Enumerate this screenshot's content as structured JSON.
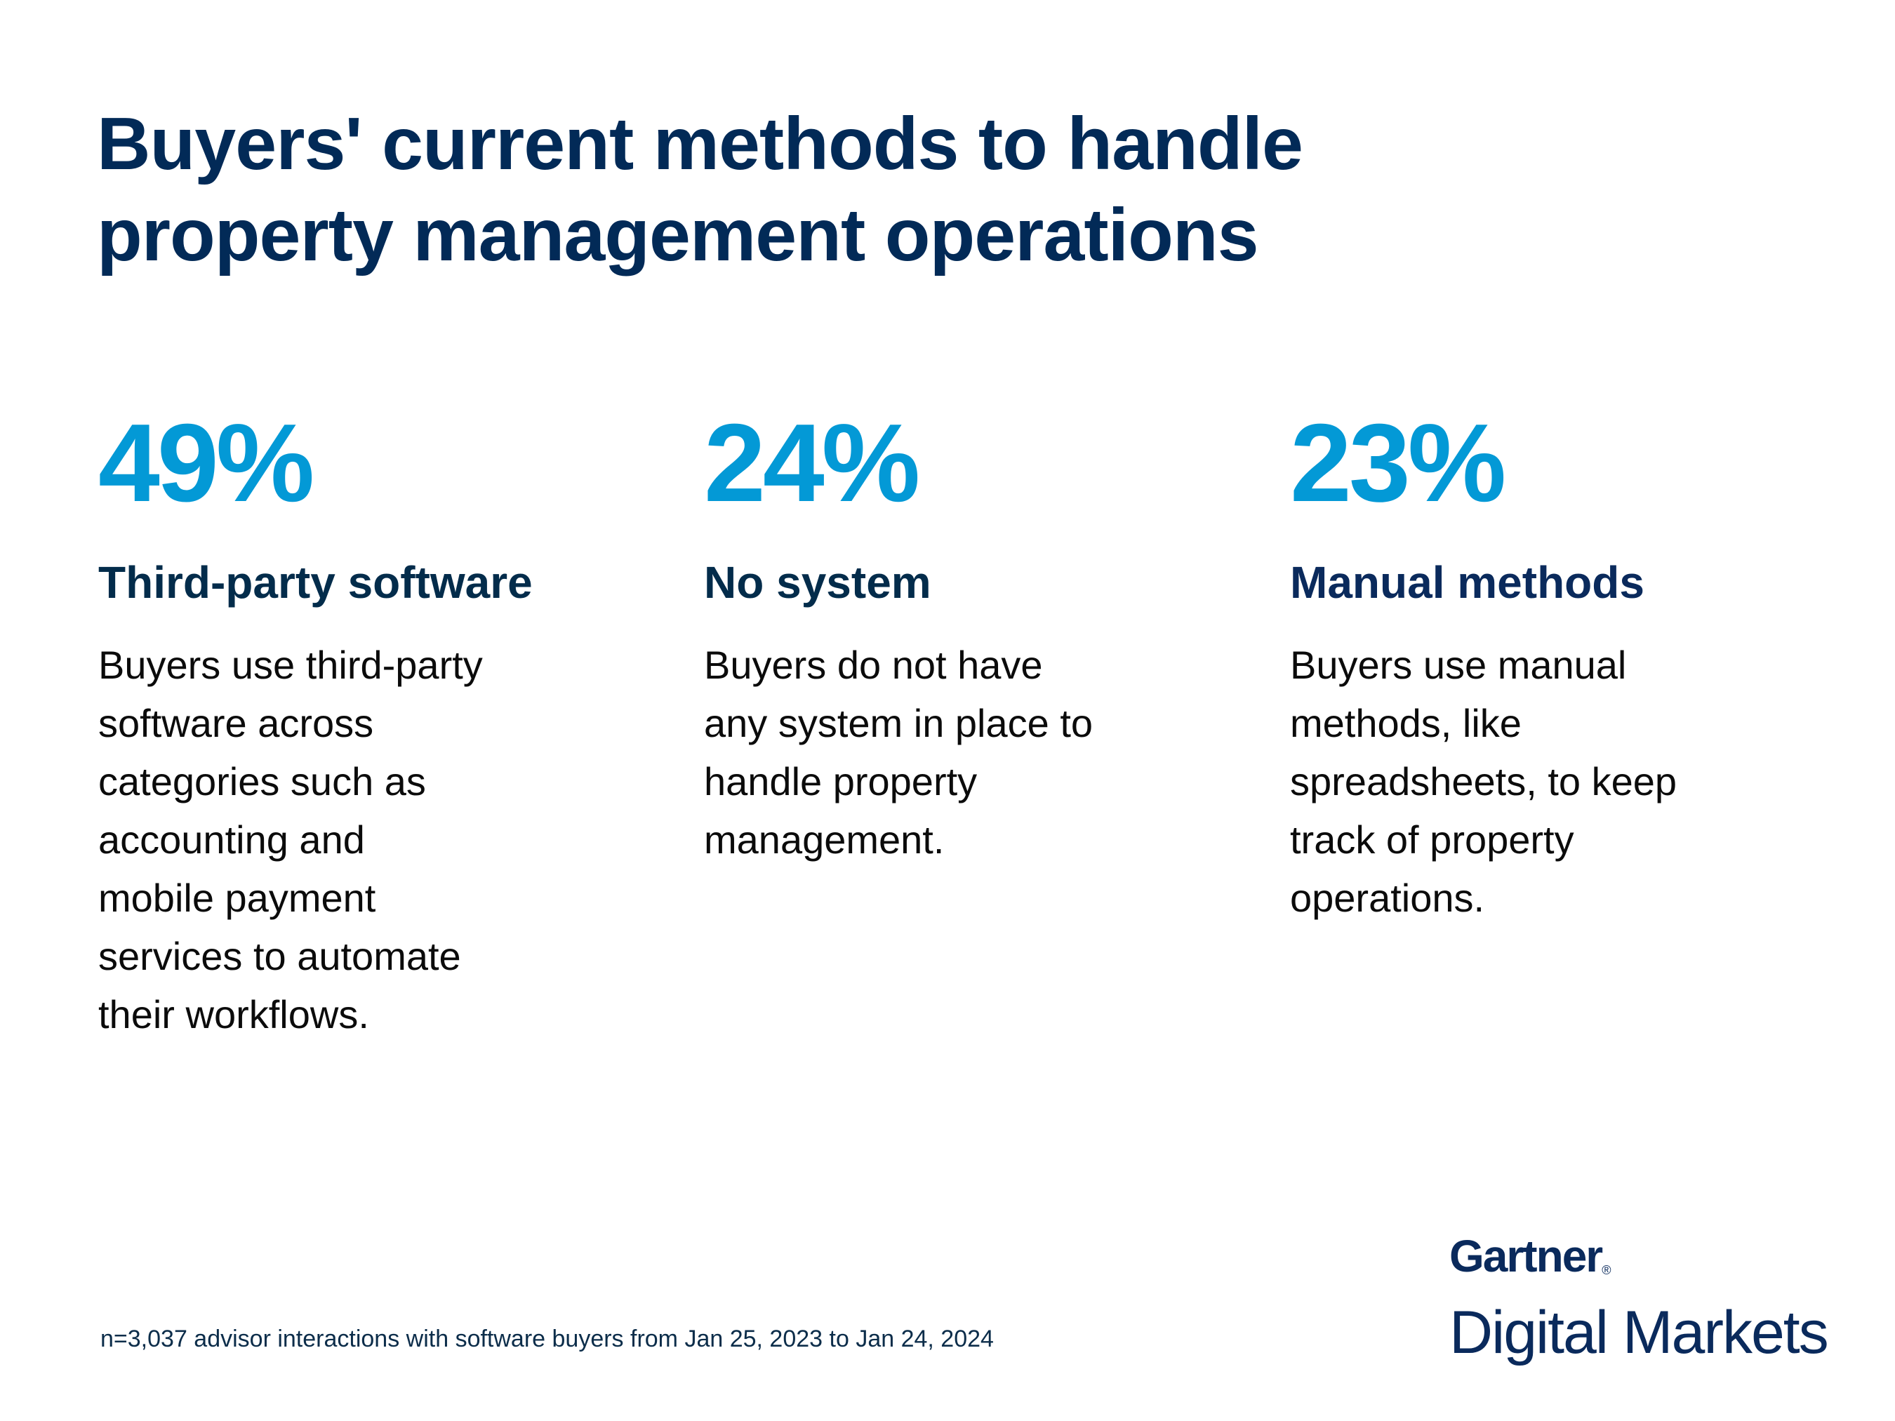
{
  "title": {
    "line1": "Buyers' current methods to handle",
    "line2": "property management operations"
  },
  "stats": [
    {
      "value": "49%",
      "label": "Third-party software",
      "description_lines": [
        "Buyers use third-party",
        "software across",
        "categories such as",
        "accounting and",
        "mobile payment",
        "services to automate",
        "their workflows."
      ]
    },
    {
      "value": "24%",
      "label": "No system",
      "description_lines": [
        "Buyers do not have",
        "any system in place to",
        "handle property",
        "management."
      ]
    },
    {
      "value": "23%",
      "label": "Manual methods",
      "description_lines": [
        "Buyers use manual",
        "methods, like",
        "spreadsheets, to keep",
        "track of property",
        "operations."
      ]
    }
  ],
  "footnote": "n=3,037 advisor interactions with software buyers from Jan 25, 2023 to Jan 24, 2024",
  "logo": {
    "brand": "Gartner",
    "registered": "®",
    "sub": "Digital Markets"
  },
  "colors": {
    "title": "#022a57",
    "stat_value": "#0399d6",
    "label": "#032c4b",
    "body": "#0b0b0b"
  },
  "chart_data": {
    "type": "table",
    "title": "Buyers' current methods to handle property management operations",
    "categories": [
      "Third-party software",
      "No system",
      "Manual methods"
    ],
    "values": [
      49,
      24,
      23
    ],
    "unit": "%",
    "note": "n=3,037 advisor interactions with software buyers from Jan 25, 2023 to Jan 24, 2024"
  }
}
